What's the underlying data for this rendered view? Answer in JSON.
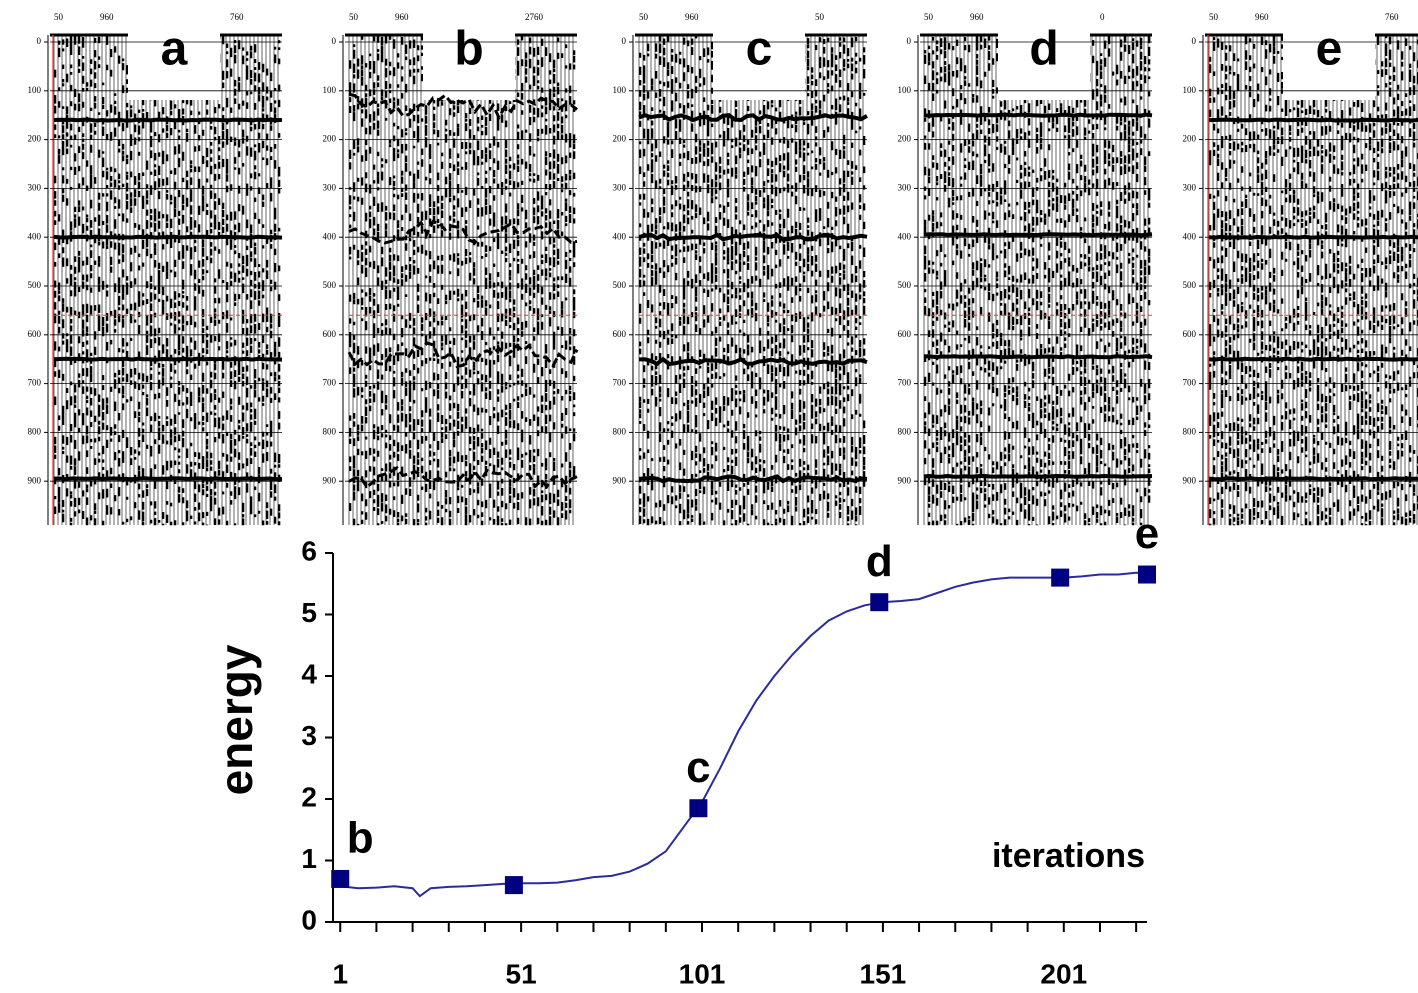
{
  "panels": [
    {
      "label": "a",
      "top_labels": [
        "50",
        "960",
        "760"
      ],
      "ylim": [
        0,
        1000
      ],
      "yticks": [
        0,
        100,
        200,
        300,
        400,
        500,
        600,
        700,
        800,
        900
      ]
    },
    {
      "label": "b",
      "top_labels": [
        "50",
        "960",
        "2760"
      ],
      "ylim": [
        0,
        1000
      ],
      "yticks": [
        0,
        100,
        200,
        300,
        400,
        500,
        600,
        700,
        800,
        900
      ]
    },
    {
      "label": "c",
      "top_labels": [
        "50",
        "960",
        "50"
      ],
      "ylim": [
        0,
        1000
      ],
      "yticks": [
        0,
        100,
        200,
        300,
        400,
        500,
        600,
        700,
        800,
        900
      ]
    },
    {
      "label": "d",
      "top_labels": [
        "50",
        "960",
        "0"
      ],
      "ylim": [
        0,
        1000
      ],
      "yticks": [
        0,
        100,
        200,
        300,
        400,
        500,
        600,
        700,
        800,
        900
      ]
    },
    {
      "label": "e",
      "top_labels": [
        "50",
        "960",
        "760"
      ],
      "ylim": [
        0,
        1000
      ],
      "yticks": [
        0,
        100,
        200,
        300,
        400,
        500,
        600,
        700,
        800,
        900
      ]
    }
  ],
  "chart_data": {
    "type": "line",
    "y_label": "energy",
    "annotation": "iterations",
    "xlim": [
      -1,
      224
    ],
    "ylim": [
      0,
      6
    ],
    "xticks": [
      1,
      51,
      101,
      151,
      201
    ],
    "xticks_minor": [
      11,
      21,
      31,
      41,
      61,
      71,
      81,
      91,
      111,
      121,
      131,
      141,
      161,
      171,
      181,
      191,
      211,
      221
    ],
    "yticks": [
      0,
      1,
      2,
      3,
      4,
      5,
      6
    ],
    "series": [
      {
        "color": "#2b2b9e",
        "x": [
          1,
          6,
          11,
          16,
          21,
          23,
          26,
          31,
          36,
          41,
          46,
          51,
          56,
          61,
          66,
          71,
          76,
          81,
          86,
          91,
          96,
          101,
          106,
          111,
          116,
          121,
          126,
          131,
          136,
          141,
          146,
          151,
          156,
          161,
          166,
          171,
          176,
          181,
          186,
          191,
          196,
          201,
          206,
          211,
          216,
          221,
          224
        ],
        "values": [
          0.58,
          0.55,
          0.56,
          0.58,
          0.55,
          0.42,
          0.55,
          0.57,
          0.58,
          0.6,
          0.62,
          0.63,
          0.63,
          0.64,
          0.68,
          0.73,
          0.75,
          0.82,
          0.95,
          1.15,
          1.55,
          1.95,
          2.5,
          3.1,
          3.6,
          4.0,
          4.35,
          4.65,
          4.9,
          5.05,
          5.15,
          5.2,
          5.22,
          5.25,
          5.35,
          5.45,
          5.52,
          5.57,
          5.6,
          5.6,
          5.6,
          5.6,
          5.62,
          5.65,
          5.65,
          5.68,
          5.68
        ]
      },
      {
        "color": "#000080",
        "marker": "square",
        "x": [
          1,
          49,
          100,
          150,
          200,
          224
        ],
        "values": [
          0.7,
          0.6,
          1.85,
          5.2,
          5.6,
          5.65
        ],
        "point_labels": [
          "b",
          null,
          "c",
          "d",
          null,
          "e"
        ]
      }
    ]
  }
}
